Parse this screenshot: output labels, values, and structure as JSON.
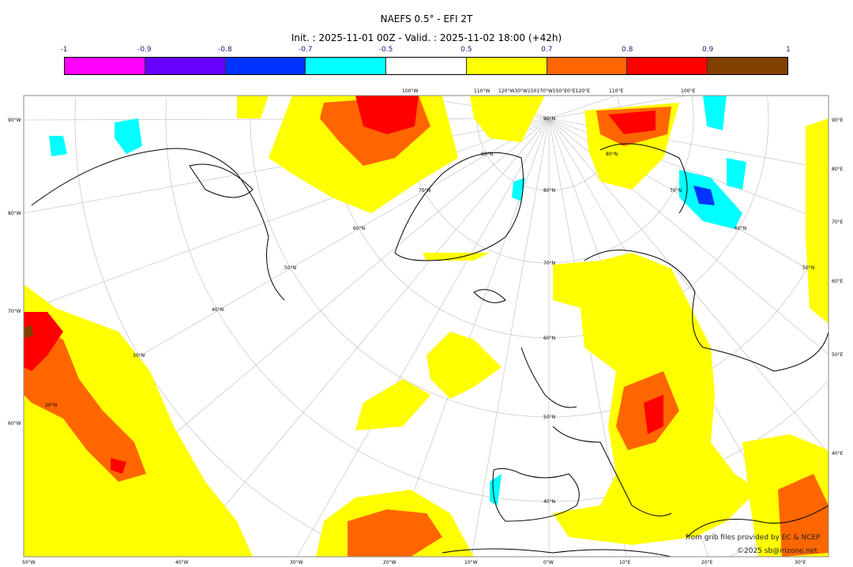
{
  "header": {
    "title": "NAEFS 0.5° - EFI 2T",
    "subtitle": "Init. : 2025-11-01 00Z - Valid. : 2025-11-02 18:00 (+42h)"
  },
  "colorbar": {
    "ticks": [
      "-1",
      "-0.9",
      "-0.8",
      "-0.7",
      "-0.5",
      "0.5",
      "0.7",
      "0.8",
      "0.9",
      "1"
    ],
    "colors": [
      "#ff00ff",
      "#6600ff",
      "#0033ff",
      "#00ffff",
      "#ffffff",
      "#ffff00",
      "#ff6600",
      "#ff0000",
      "#804000"
    ]
  },
  "map": {
    "left_labels": [
      "90°W",
      "80°W",
      "70°W",
      "60°W"
    ],
    "right_labels": [
      "90°E",
      "80°E",
      "70°E",
      "60°E",
      "50°E",
      "40°E"
    ],
    "bottom_labels": [
      "50°W",
      "40°W",
      "30°W",
      "20°W",
      "10°W",
      "0°W",
      "10°E",
      "20°E",
      "30°E"
    ],
    "top_labels": [
      "100°W",
      "110°W",
      "120°W30°W150170°W150°E0°E120°E",
      "110°E",
      "100°E"
    ],
    "lat_labels": [
      "90°N",
      "80°N",
      "70°N",
      "60°N",
      "50°N",
      "40°N",
      "30°N",
      "40°N",
      "50°N",
      "60°N",
      "70°N",
      "80°N",
      "20°N",
      "80°N",
      "70°N",
      "60°N",
      "50°N"
    ]
  },
  "credits": {
    "source": "from grib files provided by EC & NCEP",
    "copyright": "©2025 sb@irizone.net"
  }
}
